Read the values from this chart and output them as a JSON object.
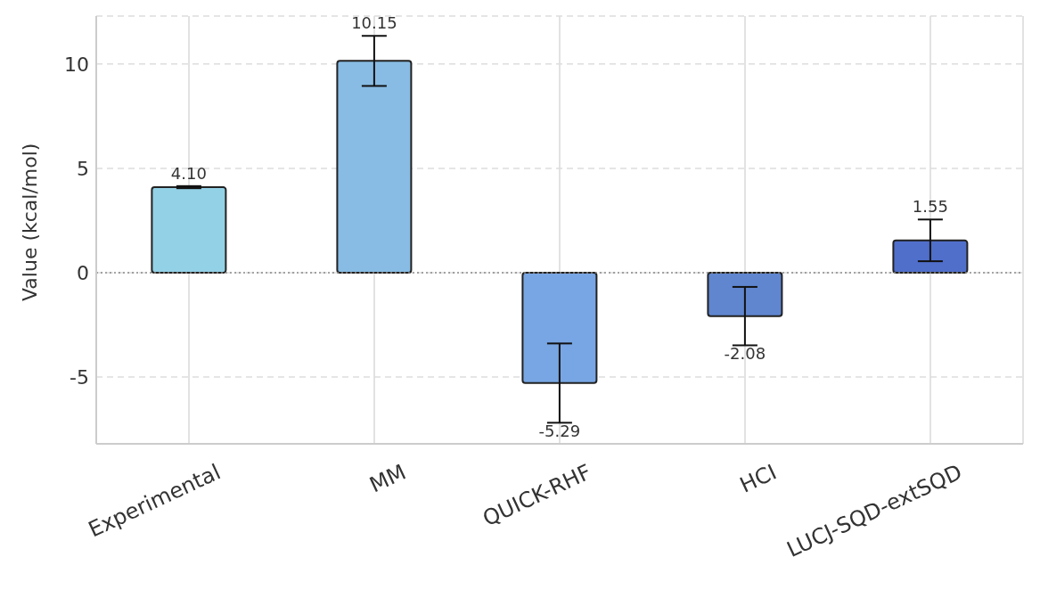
{
  "chart_data": {
    "type": "bar",
    "ylabel": "Value (kcal/mol)",
    "categories": [
      "Experimental",
      "MM",
      "QUICK-RHF",
      "HCI",
      "LUCJ-SQD-extSQD"
    ],
    "values": [
      4.1,
      10.15,
      -5.29,
      -2.08,
      1.55
    ],
    "colors": [
      "#93d1e6",
      "#88bce4",
      "#78a6e4",
      "#5f86cf",
      "#506fcb"
    ],
    "errors": [
      0.05,
      1.2,
      1.9,
      1.4,
      1.0
    ],
    "value_labels": [
      "4.10",
      "10.15",
      "-5.29",
      "-2.08",
      "1.55"
    ],
    "ylim": [
      -8.2,
      12.3
    ],
    "yticks": [
      -5,
      0,
      5,
      10
    ],
    "grid": true,
    "ref_lines": [
      {
        "axis": "y",
        "value": 0,
        "color": "#888888",
        "line_style": "dotted"
      }
    ]
  }
}
